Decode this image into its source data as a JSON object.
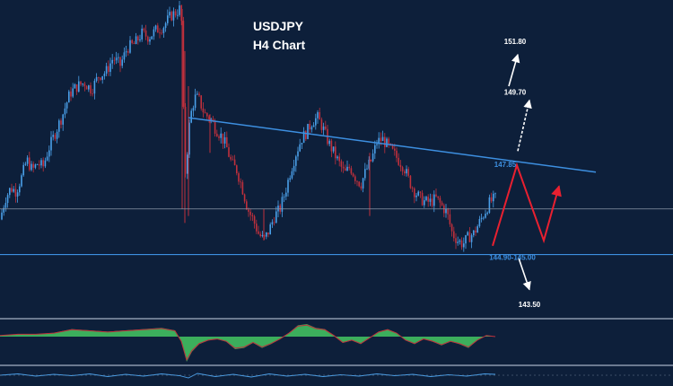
{
  "chart_data": {
    "type": "candlestick",
    "title": "USDJPY",
    "subtitle": "H4 Chart",
    "colors": {
      "background": "#0d1f3a",
      "up_candle": "#4a9fe8",
      "down_candle": "#c0303c",
      "trendline": "#3d8fe0",
      "support_line": "#3d8fe0",
      "current_price_line": "#8a97a8",
      "projection_red": "#e82030",
      "projection_white": "#ffffff",
      "oscillator_fill": "#3cae5c",
      "oscillator_line": "#c0303c",
      "separator": "#6b7a90"
    },
    "price_axis": {
      "min": 143.3,
      "max": 152.0
    },
    "price_path": [
      [
        0,
        146.0
      ],
      [
        6,
        146.6
      ],
      [
        12,
        146.9
      ],
      [
        18,
        146.8
      ],
      [
        24,
        147.2
      ],
      [
        30,
        147.7
      ],
      [
        36,
        147.4
      ],
      [
        42,
        147.6
      ],
      [
        48,
        147.5
      ],
      [
        54,
        148.0
      ],
      [
        62,
        148.5
      ],
      [
        70,
        149.0
      ],
      [
        78,
        149.6
      ],
      [
        86,
        149.8
      ],
      [
        94,
        149.9
      ],
      [
        102,
        149.7
      ],
      [
        110,
        150.1
      ],
      [
        118,
        150.2
      ],
      [
        126,
        150.6
      ],
      [
        134,
        150.4
      ],
      [
        142,
        150.9
      ],
      [
        150,
        151.0
      ],
      [
        158,
        151.3
      ],
      [
        166,
        151.2
      ],
      [
        174,
        151.4
      ],
      [
        182,
        151.5
      ],
      [
        190,
        151.8
      ],
      [
        196,
        151.9
      ],
      [
        200,
        152.0
      ],
      [
        203,
        151.5
      ],
      [
        205,
        148.0
      ],
      [
        207,
        147.2
      ],
      [
        210,
        148.5
      ],
      [
        214,
        149.2
      ],
      [
        218,
        149.5
      ],
      [
        222,
        149.4
      ],
      [
        228,
        149.0
      ],
      [
        234,
        148.9
      ],
      [
        240,
        148.6
      ],
      [
        246,
        148.4
      ],
      [
        252,
        148.1
      ],
      [
        258,
        147.6
      ],
      [
        264,
        147.4
      ],
      [
        270,
        146.9
      ],
      [
        276,
        146.3
      ],
      [
        282,
        146.0
      ],
      [
        288,
        145.6
      ],
      [
        294,
        145.4
      ],
      [
        300,
        145.7
      ],
      [
        306,
        146.1
      ],
      [
        312,
        146.3
      ],
      [
        318,
        146.8
      ],
      [
        324,
        147.4
      ],
      [
        330,
        147.9
      ],
      [
        336,
        148.3
      ],
      [
        342,
        148.5
      ],
      [
        348,
        148.8
      ],
      [
        354,
        148.9
      ],
      [
        360,
        148.6
      ],
      [
        366,
        148.2
      ],
      [
        372,
        147.9
      ],
      [
        378,
        147.6
      ],
      [
        384,
        147.3
      ],
      [
        390,
        147.5
      ],
      [
        396,
        147.2
      ],
      [
        402,
        147.0
      ],
      [
        408,
        147.4
      ],
      [
        414,
        147.7
      ],
      [
        420,
        148.2
      ],
      [
        426,
        148.3
      ],
      [
        432,
        148.1
      ],
      [
        438,
        147.9
      ],
      [
        444,
        147.7
      ],
      [
        450,
        147.5
      ],
      [
        456,
        147.1
      ],
      [
        462,
        146.8
      ],
      [
        468,
        146.6
      ],
      [
        474,
        146.5
      ],
      [
        480,
        146.5
      ],
      [
        486,
        146.6
      ],
      [
        492,
        146.4
      ],
      [
        498,
        146.2
      ],
      [
        504,
        145.6
      ],
      [
        510,
        145.4
      ],
      [
        516,
        145.3
      ],
      [
        522,
        145.5
      ],
      [
        528,
        145.6
      ],
      [
        534,
        145.9
      ],
      [
        540,
        146.2
      ],
      [
        546,
        146.5
      ],
      [
        552,
        146.6
      ]
    ],
    "trendline": {
      "from": [
        210,
        148.9
      ],
      "to": [
        664,
        147.35
      ]
    },
    "support_level": 145.0,
    "current_price": 146.3,
    "projection_red_path": [
      [
        549,
        145.25
      ],
      [
        576,
        147.55
      ],
      [
        606,
        145.4
      ],
      [
        623,
        146.95
      ]
    ],
    "projection_red_arrow_tip": [
      623,
      146.95
    ],
    "projection_white_arrows": [
      {
        "from": [
          577,
          147.95
        ],
        "to": [
          590,
          149.4
        ]
      },
      {
        "from": [
          567,
          149.8
        ],
        "to": [
          577,
          150.7
        ]
      },
      {
        "from": [
          578,
          144.9
        ],
        "to": [
          590,
          144.0
        ]
      }
    ],
    "annotations": [
      {
        "id": "target-151-80",
        "label": "151.80",
        "at": [
          574,
          151.0
        ],
        "color": "white"
      },
      {
        "id": "target-149-70",
        "label": "149.70",
        "at": [
          574,
          149.55
        ],
        "color": "white"
      },
      {
        "id": "resistance-147-85",
        "label": "147.85",
        "at": [
          563,
          147.5
        ],
        "color": "blue"
      },
      {
        "id": "support-144-90-145-00",
        "label": "144.90-145.00",
        "at": [
          571,
          144.85
        ],
        "color": "blue"
      },
      {
        "id": "target-143-50",
        "label": "143.50",
        "at": [
          590,
          143.5
        ],
        "color": "white"
      }
    ],
    "oscillator": {
      "min": -1.0,
      "max": 1.0,
      "values": [
        [
          0,
          0.05
        ],
        [
          20,
          0.1
        ],
        [
          40,
          0.1
        ],
        [
          60,
          0.15
        ],
        [
          80,
          0.3
        ],
        [
          100,
          0.25
        ],
        [
          120,
          0.2
        ],
        [
          140,
          0.25
        ],
        [
          160,
          0.3
        ],
        [
          180,
          0.35
        ],
        [
          195,
          0.25
        ],
        [
          202,
          -0.2
        ],
        [
          208,
          -1.0
        ],
        [
          214,
          -0.6
        ],
        [
          222,
          -0.3
        ],
        [
          232,
          -0.15
        ],
        [
          242,
          -0.1
        ],
        [
          252,
          -0.2
        ],
        [
          262,
          -0.5
        ],
        [
          272,
          -0.45
        ],
        [
          282,
          -0.25
        ],
        [
          292,
          -0.45
        ],
        [
          302,
          -0.3
        ],
        [
          312,
          -0.1
        ],
        [
          322,
          0.15
        ],
        [
          332,
          0.45
        ],
        [
          342,
          0.5
        ],
        [
          352,
          0.35
        ],
        [
          362,
          0.3
        ],
        [
          372,
          0.05
        ],
        [
          382,
          -0.25
        ],
        [
          392,
          -0.15
        ],
        [
          402,
          -0.3
        ],
        [
          412,
          -0.05
        ],
        [
          422,
          0.2
        ],
        [
          432,
          0.3
        ],
        [
          442,
          0.15
        ],
        [
          452,
          -0.15
        ],
        [
          462,
          -0.3
        ],
        [
          472,
          -0.1
        ],
        [
          482,
          -0.2
        ],
        [
          492,
          -0.35
        ],
        [
          502,
          -0.2
        ],
        [
          512,
          -0.3
        ],
        [
          522,
          -0.45
        ],
        [
          532,
          -0.15
        ],
        [
          542,
          0.05
        ],
        [
          552,
          0.0
        ]
      ]
    },
    "secondary_indicator": {
      "values": [
        [
          0,
          0.0
        ],
        [
          20,
          0.3
        ],
        [
          40,
          -0.2
        ],
        [
          60,
          0.2
        ],
        [
          80,
          -0.1
        ],
        [
          100,
          0.3
        ],
        [
          120,
          -0.3
        ],
        [
          140,
          0.2
        ],
        [
          160,
          -0.2
        ],
        [
          180,
          0.3
        ],
        [
          200,
          -0.1
        ],
        [
          210,
          -0.6
        ],
        [
          220,
          0.4
        ],
        [
          240,
          -0.3
        ],
        [
          260,
          0.2
        ],
        [
          280,
          -0.4
        ],
        [
          300,
          0.3
        ],
        [
          320,
          -0.2
        ],
        [
          340,
          0.2
        ],
        [
          360,
          -0.3
        ],
        [
          380,
          0.1
        ],
        [
          400,
          -0.2
        ],
        [
          420,
          0.3
        ],
        [
          440,
          -0.1
        ],
        [
          460,
          0.2
        ],
        [
          480,
          -0.3
        ],
        [
          500,
          0.1
        ],
        [
          520,
          -0.2
        ],
        [
          540,
          0.3
        ],
        [
          552,
          0.2
        ]
      ]
    }
  }
}
